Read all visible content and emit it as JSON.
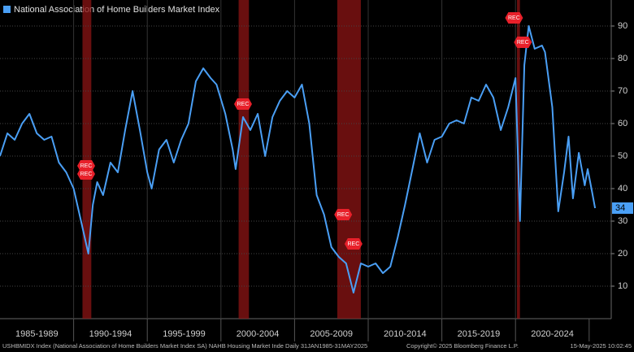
{
  "chart_data": {
    "type": "line",
    "series": [
      {
        "name": "National Association of Home Builders Market Index",
        "color": "#4a9ff5",
        "x": [
          1985.0,
          1985.5,
          1986.0,
          1986.5,
          1987.0,
          1987.5,
          1988.0,
          1988.5,
          1989.0,
          1989.5,
          1990.0,
          1990.5,
          1991.0,
          1991.3,
          1991.6,
          1992.0,
          1992.5,
          1993.0,
          1993.5,
          1994.0,
          1994.5,
          1995.0,
          1995.3,
          1995.8,
          1996.3,
          1996.8,
          1997.3,
          1997.8,
          1998.3,
          1998.8,
          1999.3,
          1999.7,
          2000.3,
          2000.8,
          2001.0,
          2001.5,
          2002.0,
          2002.5,
          2003.0,
          2003.5,
          2004.0,
          2004.5,
          2005.0,
          2005.5,
          2006.0,
          2006.5,
          2007.0,
          2007.5,
          2008.0,
          2008.5,
          2009.0,
          2009.5,
          2010.0,
          2010.5,
          2011.0,
          2011.5,
          2012.0,
          2012.5,
          2013.0,
          2013.5,
          2014.0,
          2014.5,
          2015.0,
          2015.5,
          2016.0,
          2016.5,
          2017.0,
          2017.5,
          2018.0,
          2018.5,
          2019.0,
          2019.5,
          2020.0,
          2020.3,
          2020.6,
          2020.9,
          2021.3,
          2021.8,
          2022.0,
          2022.5,
          2022.9,
          2023.3,
          2023.6,
          2023.9,
          2024.3,
          2024.7,
          2024.9,
          2025.2,
          2025.4
        ],
        "values": [
          50,
          57,
          55,
          60,
          63,
          57,
          55,
          56,
          48,
          45,
          40,
          30,
          20,
          35,
          42,
          38,
          48,
          45,
          58,
          70,
          58,
          45,
          40,
          52,
          55,
          48,
          55,
          60,
          73,
          77,
          74,
          72,
          63,
          52,
          46,
          62,
          58,
          63,
          50,
          62,
          67,
          70,
          68,
          72,
          60,
          38,
          32,
          22,
          19,
          17,
          8,
          17,
          16,
          17,
          14,
          16,
          25,
          35,
          46,
          57,
          48,
          55,
          56,
          60,
          61,
          60,
          68,
          67,
          72,
          68,
          58,
          65,
          74,
          30,
          78,
          90,
          83,
          84,
          82,
          65,
          33,
          45,
          56,
          37,
          51,
          41,
          46,
          39,
          34
        ]
      }
    ],
    "last_value_label": "34",
    "ylim": [
      0,
      98
    ],
    "yticks": [
      10,
      20,
      30,
      40,
      50,
      60,
      70,
      80,
      90
    ],
    "xlim": [
      1985,
      2026.5
    ],
    "grid": true,
    "x_bands": [
      {
        "label": "1985-1989",
        "start": 1985,
        "end": 1990
      },
      {
        "label": "1990-1994",
        "start": 1990,
        "end": 1995
      },
      {
        "label": "1995-1999",
        "start": 1995,
        "end": 2000
      },
      {
        "label": "2000-2004",
        "start": 2000,
        "end": 2005
      },
      {
        "label": "2005-2009",
        "start": 2005,
        "end": 2010
      },
      {
        "label": "2010-2014",
        "start": 2010,
        "end": 2015
      },
      {
        "label": "2015-2019",
        "start": 2015,
        "end": 2020
      },
      {
        "label": "2020-2024",
        "start": 2020,
        "end": 2025
      }
    ],
    "recessions": [
      [
        1990.6,
        1991.2
      ],
      [
        2001.2,
        2001.9
      ],
      [
        2007.9,
        2009.5
      ],
      [
        2020.1,
        2020.3
      ]
    ],
    "annotations": [
      {
        "label": "REC",
        "x": 1990.85,
        "y": 47
      },
      {
        "label": "REC",
        "x": 1990.85,
        "y": 44.5
      },
      {
        "label": "REC",
        "x": 2001.5,
        "y": 66
      },
      {
        "label": "REC",
        "x": 2008.3,
        "y": 32
      },
      {
        "label": "REC",
        "x": 2009.0,
        "y": 23
      },
      {
        "label": "REC",
        "x": 2019.9,
        "y": 92.5
      },
      {
        "label": "REC",
        "x": 2020.5,
        "y": 85
      }
    ],
    "footer": {
      "source": "USHBMIDX Index (National Association of Home Builders Market Index SA) NAHB Housing Market Inde  Daily 31JAN1985-31MAY2025",
      "copyright": "Copyright© 2025 Bloomberg Finance L.P.",
      "timestamp": "15-May-2025 10:02:45"
    }
  }
}
